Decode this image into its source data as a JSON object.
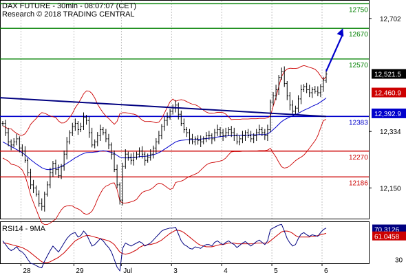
{
  "header": {
    "line1": "DAX FUTURE - 30min - 08:07:07 (CET)",
    "line2": "Research © 2018 TRADING CENTRAL"
  },
  "rsi_label": "RSI14 - 9MA",
  "colors": {
    "resistance": "#008000",
    "support": "#cc0000",
    "pivot": "#0000cc",
    "trend": "#000080",
    "arrow": "#0000cc",
    "bollinger": "#cc0000",
    "ma": "#0000cc",
    "candle": "#000000",
    "rsi": "#000080",
    "rsi_ma": "#cc0000",
    "current_box": "#000000",
    "level_box": "#cc0000",
    "pivot_box": "#0000cc"
  },
  "chart_data": {
    "type": "line",
    "title": "DAX FUTURE - 30min - 08:07:07 (CET)",
    "price_ylim": [
      12050,
      12760
    ],
    "price_ticks": [
      "12,702",
      "12,334",
      "12,150"
    ],
    "price_tick_values": [
      12702,
      12334,
      12150
    ],
    "x_labels": [
      "28",
      "29",
      "Jul",
      "3",
      "4",
      "5",
      "6"
    ],
    "x_label_index": [
      8,
      27,
      44,
      62,
      80,
      98,
      116
    ],
    "levels": [
      {
        "name": "resistance",
        "value": 12750,
        "label": "12750"
      },
      {
        "name": "resistance",
        "value": 12670,
        "label": "12670"
      },
      {
        "name": "resistance",
        "value": 12570,
        "label": "12570"
      },
      {
        "name": "pivot",
        "value": 12383,
        "label": "12383"
      },
      {
        "name": "support",
        "value": 12270,
        "label": "12270"
      },
      {
        "name": "support",
        "value": 12186,
        "label": "12186"
      }
    ],
    "price_boxes": [
      {
        "label": "12,521.5",
        "value": 12521.5,
        "kind": "current"
      },
      {
        "label": "12,460.9",
        "value": 12460.9,
        "kind": "level"
      },
      {
        "label": "12,392.9",
        "value": 12392.9,
        "kind": "pivot"
      }
    ],
    "trendline": {
      "from": [
        0,
        12444
      ],
      "to": [
        116,
        12383
      ]
    },
    "arrow": {
      "from": [
        116,
        12530
      ],
      "to": [
        122,
        12670
      ]
    },
    "close": [
      12360,
      12330,
      12300,
      12290,
      12300,
      12310,
      12280,
      12270,
      12240,
      12200,
      12160,
      12150,
      12130,
      12100,
      12090,
      12130,
      12160,
      12200,
      12230,
      12210,
      12190,
      12220,
      12260,
      12300,
      12330,
      12350,
      12360,
      12340,
      12350,
      12380,
      12370,
      12330,
      12290,
      12300,
      12320,
      12340,
      12330,
      12310,
      12290,
      12260,
      12210,
      12160,
      12110,
      12220,
      12260,
      12250,
      12240,
      12250,
      12260,
      12270,
      12260,
      12240,
      12250,
      12260,
      12280,
      12300,
      12320,
      12350,
      12370,
      12380,
      12400,
      12410,
      12420,
      12390,
      12360,
      12340,
      12330,
      12310,
      12300,
      12310,
      12305,
      12300,
      12310,
      12320,
      12320,
      12310,
      12330,
      12340,
      12330,
      12320,
      12330,
      12340,
      12330,
      12320,
      12300,
      12310,
      12320,
      12330,
      12320,
      12310,
      12320,
      12330,
      12340,
      12330,
      12320,
      12340,
      12430,
      12450,
      12470,
      12510,
      12530,
      12490,
      12450,
      12420,
      12400,
      12410,
      12440,
      12470,
      12480,
      12470,
      12460,
      12470,
      12465,
      12460,
      12480,
      12500,
      12521
    ],
    "ma": [
      12300,
      12295,
      12290,
      12285,
      12280,
      12275,
      12270,
      12265,
      12258,
      12250,
      12242,
      12235,
      12228,
      12222,
      12216,
      12212,
      12210,
      12210,
      12212,
      12214,
      12216,
      12220,
      12225,
      12230,
      12236,
      12242,
      12248,
      12253,
      12258,
      12262,
      12265,
      12266,
      12266,
      12267,
      12268,
      12270,
      12271,
      12270,
      12268,
      12266,
      12262,
      12256,
      12250,
      12248,
      12248,
      12248,
      12248,
      12249,
      12250,
      12252,
      12253,
      12253,
      12254,
      12256,
      12258,
      12261,
      12265,
      12270,
      12276,
      12282,
      12288,
      12294,
      12300,
      12303,
      12305,
      12306,
      12307,
      12307,
      12307,
      12308,
      12308,
      12309,
      12310,
      12311,
      12312,
      12313,
      12314,
      12316,
      12317,
      12318,
      12319,
      12320,
      12320,
      12321,
      12321,
      12321,
      12322,
      12322,
      12322,
      12323,
      12323,
      12323,
      12324,
      12324,
      12324,
      12326,
      12332,
      12340,
      12348,
      12357,
      12366,
      12372,
      12377,
      12381,
      12385,
      12389,
      12393,
      12398,
      12403,
      12407,
      12411,
      12416,
      12420,
      12424,
      12430,
      12436,
      12443
    ],
    "rsi": [
      55,
      50,
      45,
      42,
      44,
      47,
      42,
      40,
      36,
      30,
      25,
      24,
      22,
      20,
      19,
      28,
      35,
      42,
      48,
      44,
      40,
      46,
      52,
      58,
      62,
      65,
      66,
      60,
      62,
      68,
      64,
      56,
      48,
      50,
      54,
      58,
      55,
      50,
      46,
      40,
      30,
      20,
      15,
      45,
      52,
      50,
      48,
      50,
      52,
      54,
      52,
      48,
      50,
      52,
      56,
      60,
      64,
      68,
      70,
      71,
      72,
      72,
      73,
      64,
      55,
      50,
      48,
      45,
      44,
      47,
      46,
      45,
      48,
      50,
      50,
      48,
      53,
      55,
      52,
      50,
      53,
      55,
      52,
      50,
      46,
      49,
      52,
      54,
      51,
      48,
      51,
      54,
      56,
      53,
      50,
      55,
      70,
      72,
      74,
      76,
      77,
      68,
      58,
      52,
      48,
      50,
      58,
      64,
      66,
      63,
      61,
      63,
      62,
      61,
      66,
      70,
      72
    ],
    "rsi_ma": [
      52,
      52,
      51,
      50,
      49,
      48,
      47,
      46,
      44,
      42,
      39,
      36,
      33,
      30,
      27,
      26,
      26,
      27,
      29,
      31,
      33,
      36,
      39,
      43,
      47,
      51,
      55,
      57,
      59,
      61,
      62,
      62,
      61,
      60,
      59,
      58,
      57,
      56,
      55,
      53,
      50,
      45,
      40,
      38,
      37,
      38,
      39,
      41,
      43,
      46,
      48,
      49,
      50,
      50,
      51,
      52,
      54,
      56,
      59,
      62,
      65,
      67,
      69,
      69,
      68,
      66,
      63,
      60,
      57,
      54,
      51,
      49,
      48,
      47,
      47,
      47,
      48,
      49,
      50,
      50,
      51,
      52,
      52,
      52,
      51,
      51,
      51,
      51,
      51,
      51,
      51,
      52,
      52,
      52,
      52,
      52,
      55,
      58,
      61,
      64,
      67,
      68,
      68,
      67,
      65,
      62,
      60,
      60,
      60,
      60,
      60,
      61,
      61,
      62,
      63,
      64,
      65
    ],
    "rsi_ylim": [
      25,
      80
    ],
    "rsi_ticks": [
      "70.3126",
      "61.0458",
      "30"
    ],
    "rsi_tick_values": [
      70.3126,
      61.0458,
      30
    ]
  }
}
